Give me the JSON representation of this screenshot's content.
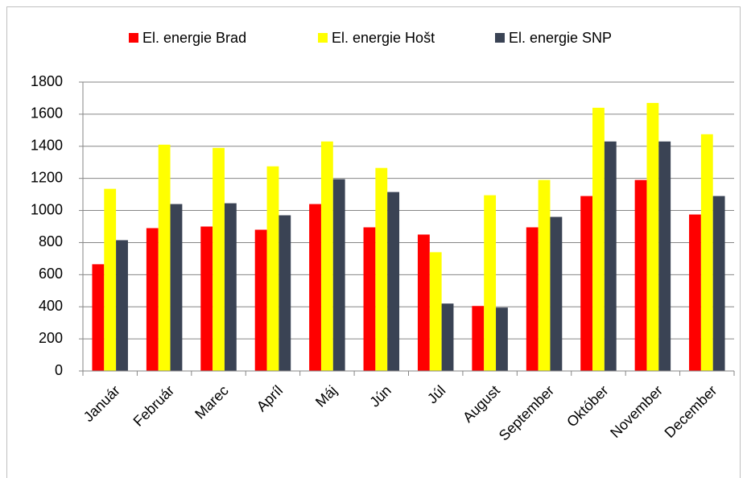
{
  "chart_data": {
    "type": "bar",
    "categories": [
      "Január",
      "Február",
      "Marec",
      "Apríl",
      "Máj",
      "Jún",
      "Júl",
      "August",
      "September",
      "Október",
      "November",
      "December"
    ],
    "series": [
      {
        "name": "El. energie Brad",
        "color": "#ff0000",
        "values": [
          665,
          890,
          900,
          880,
          1040,
          895,
          850,
          405,
          895,
          1090,
          1190,
          975
        ]
      },
      {
        "name": "El. energie Hošt",
        "color": "#ffff00",
        "values": [
          1135,
          1410,
          1390,
          1275,
          1430,
          1265,
          740,
          1095,
          1190,
          1640,
          1670,
          1475
        ]
      },
      {
        "name": "El. energie SNP",
        "color": "#3a4354",
        "values": [
          815,
          1040,
          1045,
          970,
          1195,
          1115,
          420,
          395,
          960,
          1430,
          1430,
          1090
        ]
      }
    ],
    "ylim": [
      0,
      1800
    ],
    "yticks": [
      0,
      200,
      400,
      600,
      800,
      1000,
      1200,
      1400,
      1600,
      1800
    ],
    "grid": true,
    "legend": "top"
  }
}
